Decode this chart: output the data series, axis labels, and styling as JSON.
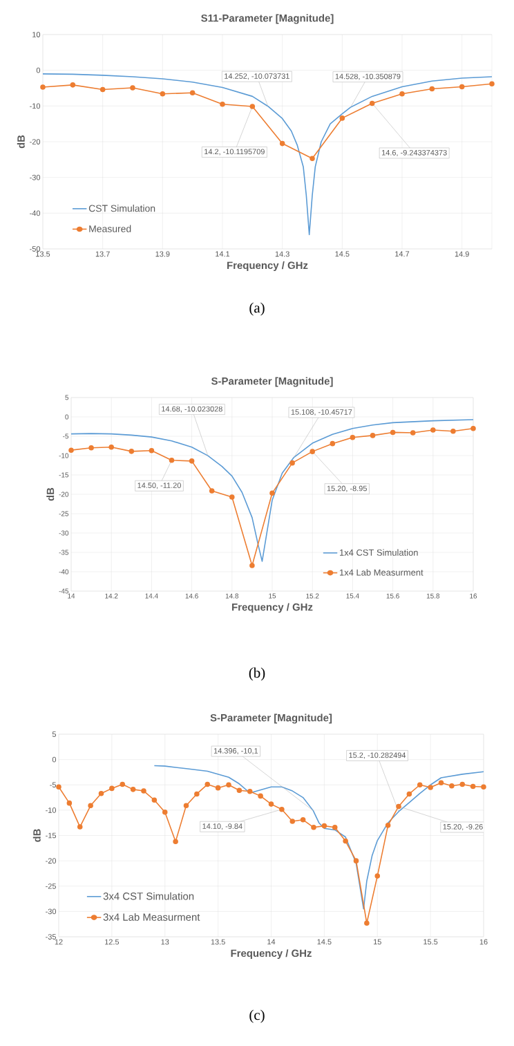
{
  "chart_data": [
    {
      "type": "line",
      "title": "S11-Parameter [Magnitude]",
      "xlabel": "Frequency / GHz",
      "ylabel": "dB",
      "xlim": [
        13.5,
        15.0
      ],
      "xticks": [
        13.5,
        13.7,
        13.9,
        14.1,
        14.3,
        14.5,
        14.7,
        14.9
      ],
      "ylim": [
        -50,
        10
      ],
      "yticks": [
        -50,
        -40,
        -30,
        -20,
        -10,
        0,
        10
      ],
      "grid": true,
      "legend": "bottom left",
      "series": [
        {
          "name": "CST Simulation",
          "color": "#5b9bd5",
          "marker": "none",
          "x": [
            13.5,
            13.6,
            13.7,
            13.8,
            13.9,
            14.0,
            14.1,
            14.2,
            14.252,
            14.3,
            14.33,
            14.35,
            14.37,
            14.38,
            14.39,
            14.4,
            14.41,
            14.43,
            14.46,
            14.5,
            14.528,
            14.6,
            14.7,
            14.8,
            14.9,
            15.0
          ],
          "values": [
            -1.0,
            -1.1,
            -1.4,
            -1.8,
            -2.4,
            -3.3,
            -4.8,
            -7.3,
            -10.073731,
            -13.5,
            -17,
            -21,
            -27,
            -35,
            -46,
            -35,
            -27,
            -20,
            -15,
            -12.2,
            -10.350879,
            -7.3,
            -4.6,
            -3.0,
            -2.2,
            -1.8
          ]
        },
        {
          "name": "Measured",
          "color": "#ed7d31",
          "marker": "circle",
          "x": [
            13.5,
            13.6,
            13.7,
            13.8,
            13.9,
            14.0,
            14.1,
            14.2,
            14.3,
            14.4,
            14.5,
            14.6,
            14.7,
            14.8,
            14.9,
            15.0
          ],
          "values": [
            -4.7,
            -4.1,
            -5.4,
            -4.9,
            -6.6,
            -6.3,
            -9.5,
            -10.1195709,
            -20.5,
            -24.7,
            -13.4,
            -9.243374373,
            -6.6,
            -5.2,
            -4.6,
            -3.8
          ]
        }
      ],
      "annotations": [
        {
          "text": "14.252, -10.073731",
          "x": 14.252,
          "y": -10.073731
        },
        {
          "text": "14.528, -10.350879",
          "x": 14.528,
          "y": -10.350879
        },
        {
          "text": "14.2, -10.1195709",
          "x": 14.2,
          "y": -10.1195709
        },
        {
          "text": "14.6, -9.243374373",
          "x": 14.6,
          "y": -9.243374373
        },
        "(a)"
      ]
    },
    {
      "type": "line",
      "title": "S-Parameter [Magnitude]",
      "xlabel": "Frequency / GHz",
      "ylabel": "dB",
      "xlim": [
        14,
        16
      ],
      "xticks": [
        14,
        14.2,
        14.4,
        14.6,
        14.8,
        15,
        15.2,
        15.4,
        15.6,
        15.8,
        16
      ],
      "ylim": [
        -45,
        5
      ],
      "yticks": [
        -45,
        -40,
        -35,
        -30,
        -25,
        -20,
        -15,
        -10,
        -5,
        0,
        5
      ],
      "grid": true,
      "legend": "bottom right",
      "series": [
        {
          "name": "1x4 CST Simulation",
          "color": "#5b9bd5",
          "marker": "none",
          "x": [
            14.0,
            14.1,
            14.2,
            14.3,
            14.4,
            14.5,
            14.6,
            14.68,
            14.75,
            14.8,
            14.85,
            14.9,
            14.93,
            14.95,
            14.97,
            15.0,
            15.05,
            15.108,
            15.2,
            15.3,
            15.4,
            15.5,
            15.6,
            15.8,
            16.0
          ],
          "values": [
            -4.4,
            -4.3,
            -4.4,
            -4.7,
            -5.2,
            -6.2,
            -7.8,
            -10.023028,
            -12.8,
            -15.3,
            -19.5,
            -26,
            -33,
            -37.3,
            -31,
            -21.5,
            -14.5,
            -10.45717,
            -6.8,
            -4.5,
            -3.0,
            -2.1,
            -1.5,
            -1.0,
            -0.7
          ]
        },
        {
          "name": "1x4 Lab Measurment",
          "color": "#ed7d31",
          "marker": "circle",
          "x": [
            14.0,
            14.1,
            14.2,
            14.3,
            14.4,
            14.5,
            14.6,
            14.7,
            14.8,
            14.9,
            15.0,
            15.1,
            15.2,
            15.3,
            15.4,
            15.5,
            15.6,
            15.7,
            15.8,
            15.9,
            16.0
          ],
          "values": [
            -8.6,
            -8.0,
            -7.8,
            -8.9,
            -8.7,
            -11.2,
            -11.4,
            -19.1,
            -20.7,
            -38.4,
            -19.7,
            -11.9,
            -8.95,
            -6.9,
            -5.3,
            -4.8,
            -4.0,
            -4.1,
            -3.4,
            -3.7,
            -3.0
          ]
        }
      ],
      "annotations": [
        {
          "text": "14.68, -10.023028",
          "x": 14.68,
          "y": -10.023028
        },
        {
          "text": "15.108, -10.45717",
          "x": 15.108,
          "y": -10.45717
        },
        {
          "text": "14.50, -11.20",
          "x": 14.5,
          "y": -11.2
        },
        {
          "text": "15.20, -8.95",
          "x": 15.2,
          "y": -8.95
        },
        "(b)"
      ]
    },
    {
      "type": "line",
      "title": "S-Parameter [Magnitude]",
      "xlabel": "Frequency / GHz",
      "ylabel": "dB",
      "xlim": [
        12,
        16
      ],
      "xticks": [
        12,
        12.5,
        13,
        13.5,
        14,
        14.5,
        15,
        15.5,
        16
      ],
      "ylim": [
        -35,
        5
      ],
      "yticks": [
        -35,
        -30,
        -25,
        -20,
        -15,
        -10,
        -5,
        0,
        5
      ],
      "grid": true,
      "legend": "bottom left",
      "series": [
        {
          "name": "3x4 CST Simulation",
          "color": "#5b9bd5",
          "marker": "none",
          "x": [
            12.9,
            13.0,
            13.2,
            13.4,
            13.6,
            13.7,
            13.8,
            13.9,
            14.0,
            14.1,
            14.2,
            14.3,
            14.396,
            14.45,
            14.5,
            14.6,
            14.7,
            14.8,
            14.87,
            14.9,
            14.95,
            15.0,
            15.1,
            15.2,
            15.3,
            15.4,
            15.5,
            15.6,
            15.8,
            16.0
          ],
          "values": [
            -1.2,
            -1.3,
            -1.8,
            -2.3,
            -3.5,
            -4.8,
            -6.6,
            -6.0,
            -5.4,
            -5.4,
            -6.2,
            -7.5,
            -10.1,
            -12.5,
            -13.6,
            -13.9,
            -15.3,
            -20.5,
            -29.5,
            -24,
            -19,
            -16,
            -12.5,
            -10.282494,
            -8.5,
            -6.7,
            -5.0,
            -3.6,
            -2.9,
            -2.4
          ]
        },
        {
          "name": "3x4 Lab Measurment",
          "color": "#ed7d31",
          "marker": "circle",
          "x": [
            12.0,
            12.1,
            12.2,
            12.3,
            12.4,
            12.5,
            12.6,
            12.7,
            12.8,
            12.9,
            13.0,
            13.1,
            13.2,
            13.3,
            13.4,
            13.5,
            13.6,
            13.7,
            13.8,
            13.9,
            14.0,
            14.1,
            14.2,
            14.3,
            14.4,
            14.5,
            14.6,
            14.7,
            14.8,
            14.9,
            15.0,
            15.1,
            15.2,
            15.3,
            15.4,
            15.5,
            15.6,
            15.7,
            15.8,
            15.9,
            16.0
          ],
          "values": [
            -5.4,
            -8.6,
            -13.3,
            -9.1,
            -6.7,
            -5.7,
            -4.9,
            -5.9,
            -6.2,
            -8.0,
            -10.4,
            -16.2,
            -9.1,
            -6.8,
            -4.9,
            -5.6,
            -5.0,
            -6.1,
            -6.3,
            -7.2,
            -8.8,
            -9.84,
            -12.2,
            -11.9,
            -13.4,
            -13.1,
            -13.4,
            -16.1,
            -20.0,
            -32.3,
            -23.0,
            -13.0,
            -9.26,
            -6.8,
            -5.0,
            -5.5,
            -4.6,
            -5.2,
            -4.9,
            -5.3,
            -5.4
          ]
        }
      ],
      "annotations": [
        {
          "text": "14.396, -10,1",
          "x": 14.396,
          "y": -10.1
        },
        {
          "text": "15.2, -10.282494",
          "x": 15.2,
          "y": -10.282494
        },
        {
          "text": "14.10, -9.84",
          "x": 14.1,
          "y": -9.84
        },
        {
          "text": "15.20, -9.26",
          "x": 15.2,
          "y": -9.26
        },
        "(c)"
      ]
    }
  ]
}
